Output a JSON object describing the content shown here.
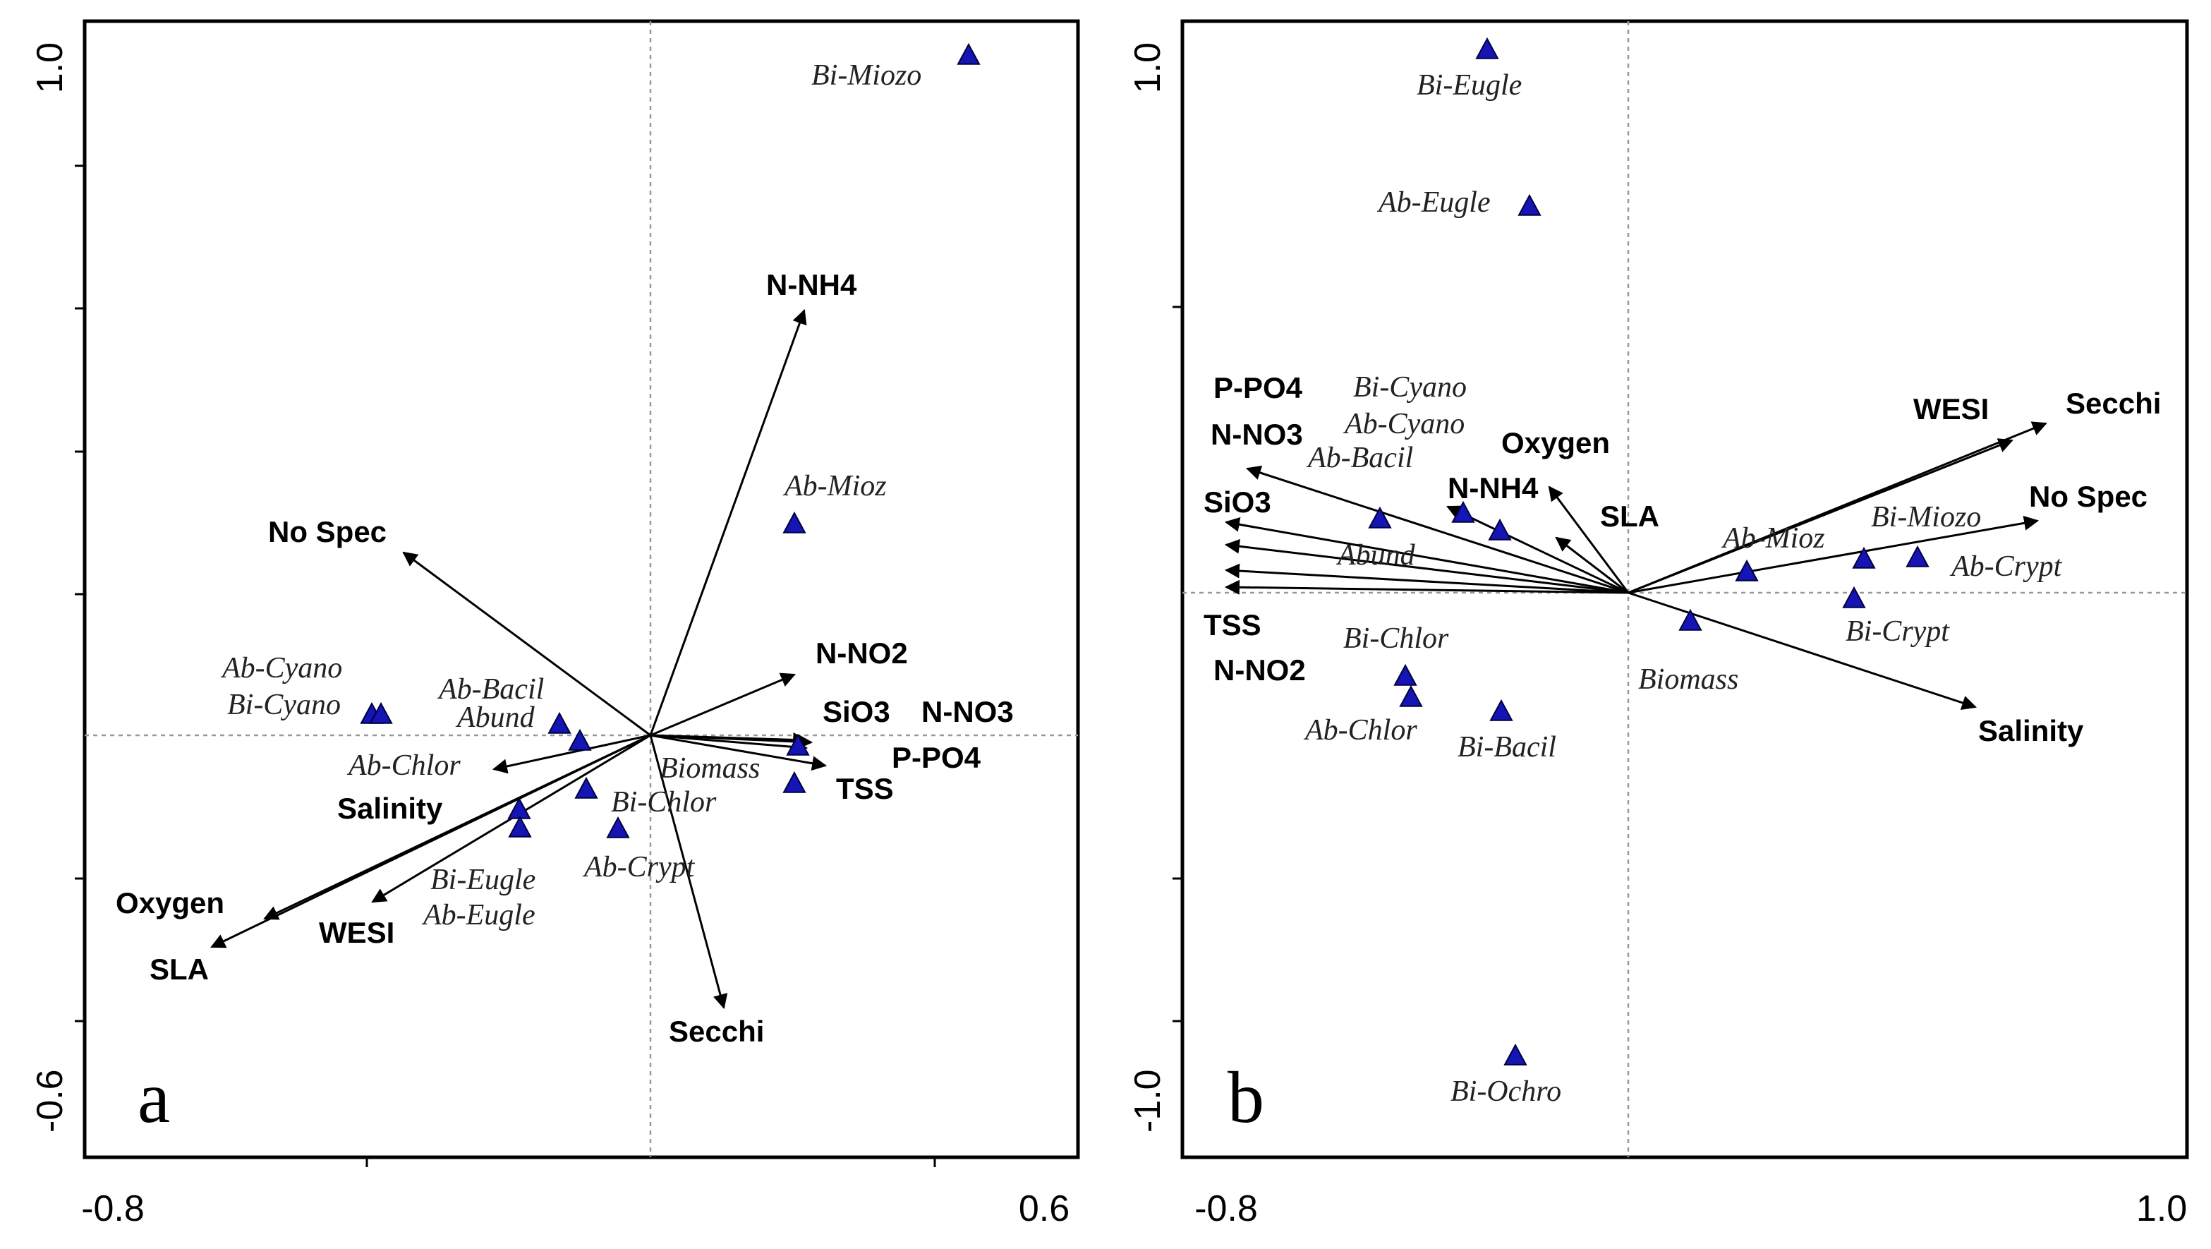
{
  "chart_data": [
    {
      "type": "scatter",
      "panel": "a",
      "xlim": [
        -0.8,
        0.6
      ],
      "ylim": [
        -0.6,
        1.0
      ],
      "x_tick_labels": [
        "-0.8",
        "0.6"
      ],
      "y_tick_labels": [
        "1.0",
        "-0.6"
      ],
      "vectors": [
        {
          "name": "N-NH4",
          "x": 0.21,
          "y": 0.59
        },
        {
          "name": "No Spec",
          "x": -0.35,
          "y": 0.26
        },
        {
          "name": "N-NO2",
          "x": 0.2,
          "y": 0.08
        },
        {
          "name": "SiO3",
          "x": 0.22,
          "y": -0.003
        },
        {
          "name": "N-NO3",
          "x": 0.23,
          "y": -0.005
        },
        {
          "name": "P-PO4",
          "x": 0.22,
          "y": -0.015
        },
        {
          "name": "TSS",
          "x": 0.25,
          "y": -0.04
        },
        {
          "name": "Secchi",
          "x": 0.1,
          "y": -0.38
        },
        {
          "name": "Salinity",
          "x": -0.22,
          "y": -0.05
        },
        {
          "name": "WESI",
          "x": -0.39,
          "y": -0.24
        },
        {
          "name": "Oxygen",
          "x": -0.52,
          "y": -0.26
        },
        {
          "name": "SLA",
          "x": -0.6,
          "y": -0.3
        }
      ],
      "points": [
        {
          "label": "Bi-Miozo",
          "x": 0.45,
          "y": 0.955
        },
        {
          "label": "Ab-Mioz",
          "x": 0.2,
          "y": 0.295
        },
        {
          "label": "Ab-Cyano",
          "x": -0.39,
          "y": 0.03
        },
        {
          "label": "Bi-Cyano",
          "x": -0.4,
          "y": 0.03
        },
        {
          "label": "Ab-Bacil",
          "x": -0.13,
          "y": 0.015
        },
        {
          "label": "Abund",
          "x": -0.1,
          "y": -0.01
        },
        {
          "label": "Ab-Chlor",
          "x": -0.09,
          "y": -0.075
        },
        {
          "label": "Bi-Chlor",
          "x": -0.05,
          "y": -0.13
        },
        {
          "label": "Ab-Crypt",
          "x": -0.185,
          "y": -0.105
        },
        {
          "label": "Bi-Eugle",
          "x": -0.185,
          "y": -0.13
        },
        {
          "label": "Ab-Eugle",
          "x": 0.205,
          "y": -0.015
        },
        {
          "label": "Biomass",
          "x": 0.2,
          "y": -0.07
        }
      ]
    },
    {
      "type": "scatter",
      "panel": "b",
      "xlim": [
        -0.8,
        1.0
      ],
      "ylim": [
        -1.0,
        1.0
      ],
      "x_tick_labels": [
        "-0.8",
        "1.0"
      ],
      "y_tick_labels": [
        "1.0",
        "-1.0"
      ],
      "vectors": [
        {
          "name": "Secchi",
          "x": 0.76,
          "y": 0.3
        },
        {
          "name": "WESI",
          "x": 0.69,
          "y": 0.27
        },
        {
          "name": "No Spec",
          "x": 0.75,
          "y": 0.13
        },
        {
          "name": "Salinity",
          "x": 0.63,
          "y": -0.2
        },
        {
          "name": "SLA",
          "x": -0.13,
          "y": 0.1
        },
        {
          "name": "Oxygen",
          "x": -0.14,
          "y": 0.19
        },
        {
          "name": "N-NH4",
          "x": -0.32,
          "y": 0.16
        },
        {
          "name": "N-NO3",
          "x": -0.7,
          "y": 0.22
        },
        {
          "name": "P-PO4",
          "x": -0.72,
          "y": 0.13
        },
        {
          "name": "SiO3",
          "x": -0.73,
          "y": 0.08
        },
        {
          "name": "TSS",
          "x": -0.73,
          "y": 0.04
        },
        {
          "name": "N-NO2",
          "x": -0.73,
          "y": 0.01
        }
      ],
      "points": [
        {
          "label": "Bi-Eugle",
          "x": -0.255,
          "y": 0.955
        },
        {
          "label": "Ab-Eugle",
          "x": -0.18,
          "y": 0.685
        },
        {
          "label": "Bi-Cyano",
          "x": -0.45,
          "y": 0.135
        },
        {
          "label": "Ab-Cyano",
          "x": -0.3,
          "y": 0.14
        },
        {
          "label": "Ab-Bacil",
          "x": -0.235,
          "y": 0.115
        },
        {
          "label": "Ab-Mioz",
          "x": 0.215,
          "y": 0.04
        },
        {
          "label": "Bi-Miozo",
          "x": 0.43,
          "y": 0.065
        },
        {
          "label": "Ab-Crypt",
          "x": 0.525,
          "y": 0.065
        },
        {
          "label": "Bi-Crypt",
          "x": 0.41,
          "y": -0.005
        },
        {
          "label": "Biomass",
          "x": 0.11,
          "y": -0.05
        },
        {
          "label": "Bi-Chlor",
          "x": -0.41,
          "y": -0.145
        },
        {
          "label": "Ab-Chlor",
          "x": -0.4,
          "y": -0.18
        },
        {
          "label": "Bi-Bacil",
          "x": -0.23,
          "y": -0.21
        },
        {
          "label": "Bi-Ochro",
          "x": -0.205,
          "y": -0.815
        },
        {
          "label": "Abund",
          "x": -0.45,
          "y": 0.135
        }
      ]
    }
  ]
}
